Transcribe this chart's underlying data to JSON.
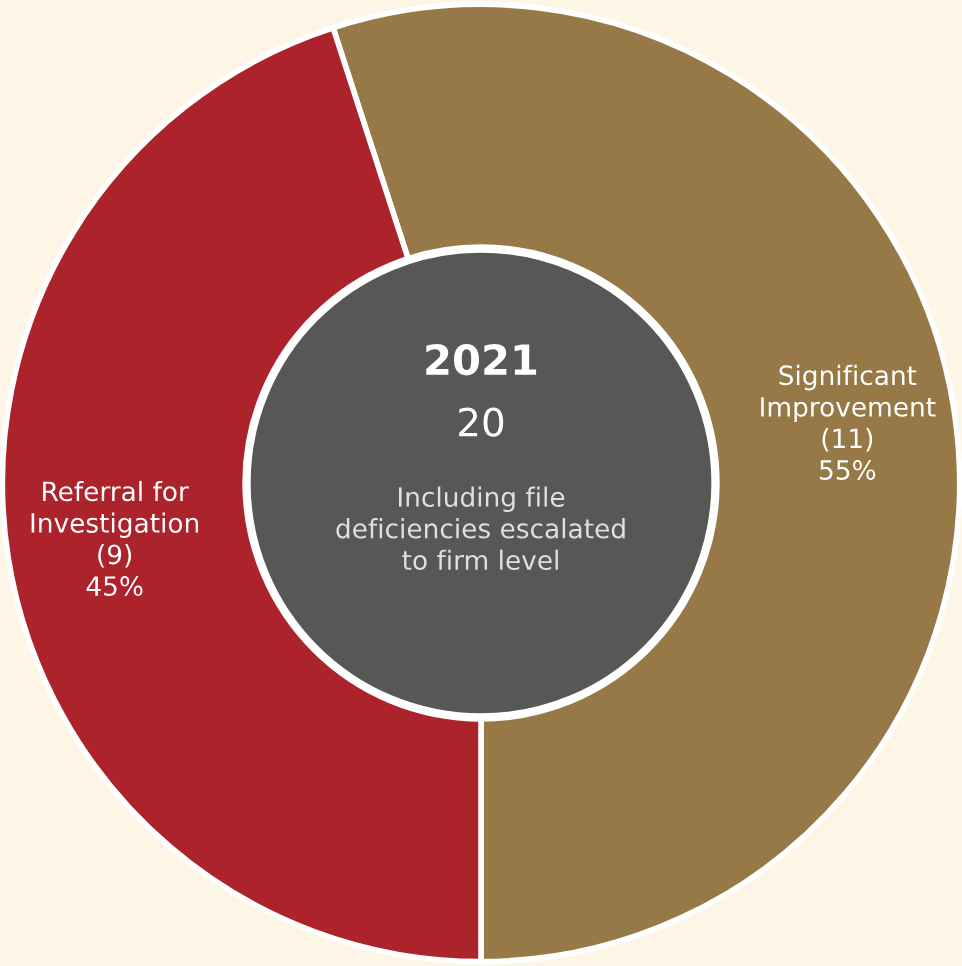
{
  "chart_data": {
    "type": "donut",
    "title": "2021",
    "categories": [
      "Significant\nImprovement",
      "Referral for\nInvestigation"
    ],
    "values": [
      11,
      9
    ],
    "value_labels": [
      "(11)\n55%",
      "(9)\n45%"
    ],
    "colors": [
      "#977948",
      "#ac232c"
    ],
    "annotations": [
      "20",
      "Including file\ndeficiencies escalated\nto firm level"
    ],
    "legend": false
  }
}
